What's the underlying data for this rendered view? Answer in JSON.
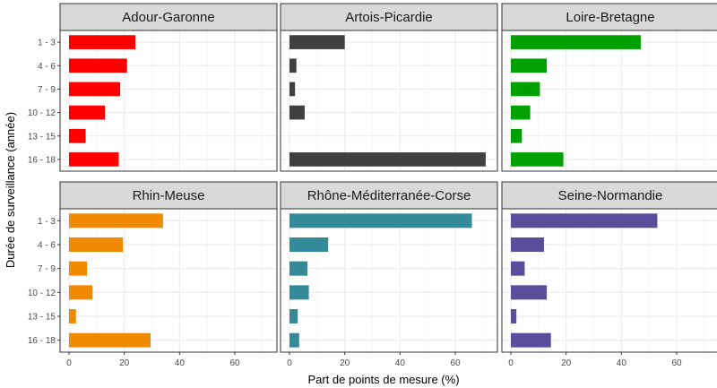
{
  "chart_data": {
    "type": "bar",
    "orientation": "horizontal",
    "facet_layout": "2x3",
    "xlabel": "Part de points de mesure (%)",
    "ylabel": "Durée de surveillance (année)",
    "xlim": [
      0,
      72
    ],
    "x_ticks": [
      0,
      20,
      40,
      60
    ],
    "x_tick_labels": [
      "0",
      "20",
      "40",
      "60"
    ],
    "categories": [
      "1 - 3",
      "4 - 6",
      "7 - 9",
      "10 - 12",
      "13 - 15",
      "16 - 18"
    ],
    "grid": true,
    "panels": [
      {
        "title": "Adour-Garonne",
        "color": "#ff0000",
        "values": [
          24,
          21,
          18.5,
          13,
          6,
          18
        ]
      },
      {
        "title": "Artois-Picardie",
        "color": "#404040",
        "values": [
          20,
          2.5,
          2,
          5.5,
          0,
          71
        ]
      },
      {
        "title": "Loire-Bretagne",
        "color": "#00a000",
        "values": [
          47,
          13,
          10.5,
          7,
          4,
          19
        ]
      },
      {
        "title": "Rhin-Meuse",
        "color": "#f08a00",
        "values": [
          34,
          19.5,
          6.5,
          8.5,
          2.5,
          29.5
        ]
      },
      {
        "title": "Rhône-Méditerranée-Corse",
        "color": "#338a99",
        "values": [
          66,
          14,
          6.5,
          7,
          3,
          3.5
        ]
      },
      {
        "title": "Seine-Normandie",
        "color": "#5a4e9c",
        "values": [
          53,
          12,
          5,
          13,
          2,
          14.5
        ]
      }
    ]
  }
}
